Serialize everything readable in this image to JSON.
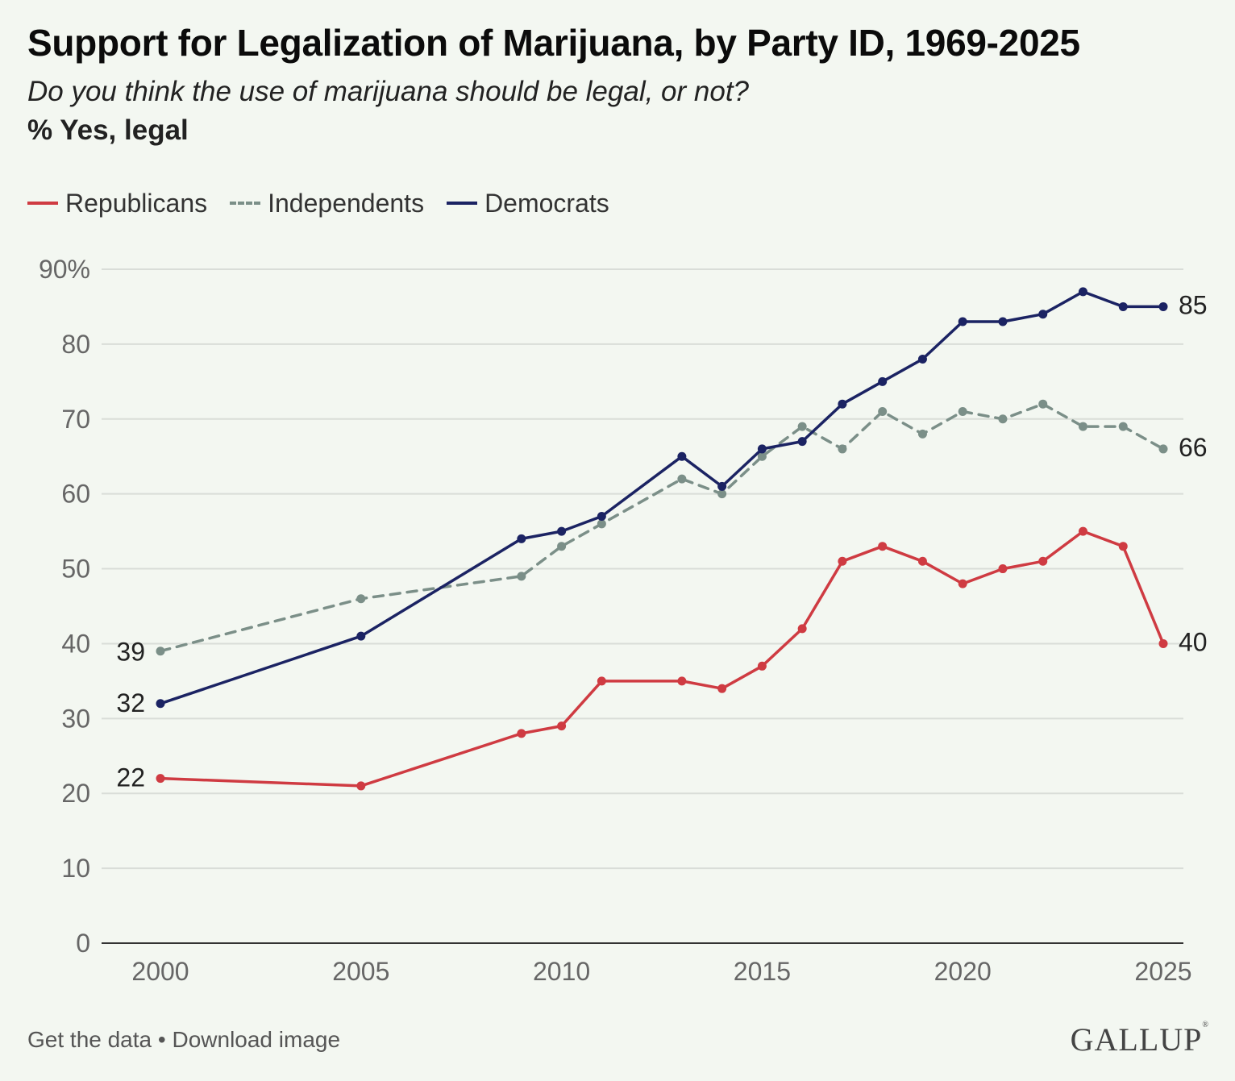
{
  "header": {
    "title": "Support for Legalization of Marijuana, by Party ID, 1969-2025",
    "subtitle": "Do you think the use of marijuana should be legal, or not?",
    "unit_note": "% Yes, legal"
  },
  "footer": {
    "get_data_label": "Get the data",
    "separator": "•",
    "download_label": "Download image",
    "brand": "GALLUP"
  },
  "chart_data": {
    "type": "line",
    "title": "Support for Legalization of Marijuana, by Party ID, 1969-2025",
    "xlabel": "",
    "ylabel": "",
    "xlim": [
      2000,
      2025
    ],
    "ylim": [
      0,
      90
    ],
    "x_ticks": [
      "2000",
      "2005",
      "2010",
      "2015",
      "2020",
      "2025"
    ],
    "y_ticks": [
      "0",
      "10",
      "20",
      "30",
      "40",
      "50",
      "60",
      "70",
      "80",
      "90%"
    ],
    "grid": true,
    "legend_position": "top-left",
    "series": [
      {
        "name": "Republicans",
        "color": "#cf3b42",
        "dash": false,
        "x": [
          2000,
          2005,
          2009,
          2010,
          2011,
          2013,
          2014,
          2015,
          2016,
          2017,
          2018,
          2019,
          2020,
          2021,
          2022,
          2023,
          2024,
          2025
        ],
        "values": [
          22,
          21,
          28,
          29,
          35,
          35,
          34,
          37,
          42,
          51,
          53,
          51,
          48,
          50,
          51,
          55,
          53,
          40
        ],
        "start_label": "22",
        "end_label": "40"
      },
      {
        "name": "Independents",
        "color": "#7b8f88",
        "dash": true,
        "x": [
          2000,
          2005,
          2009,
          2010,
          2011,
          2013,
          2014,
          2015,
          2016,
          2017,
          2018,
          2019,
          2020,
          2021,
          2022,
          2023,
          2024,
          2025
        ],
        "values": [
          39,
          46,
          49,
          53,
          56,
          62,
          60,
          65,
          69,
          66,
          71,
          68,
          71,
          70,
          72,
          69,
          69,
          66
        ],
        "start_label": "39",
        "end_label": "66"
      },
      {
        "name": "Democrats",
        "color": "#1b2363",
        "dash": false,
        "x": [
          2000,
          2005,
          2009,
          2010,
          2011,
          2013,
          2014,
          2015,
          2016,
          2017,
          2018,
          2019,
          2020,
          2021,
          2022,
          2023,
          2024,
          2025
        ],
        "values": [
          32,
          41,
          54,
          55,
          57,
          65,
          61,
          66,
          67,
          72,
          75,
          78,
          83,
          83,
          84,
          87,
          85,
          85
        ],
        "start_label": "32",
        "end_label": "85"
      }
    ]
  }
}
